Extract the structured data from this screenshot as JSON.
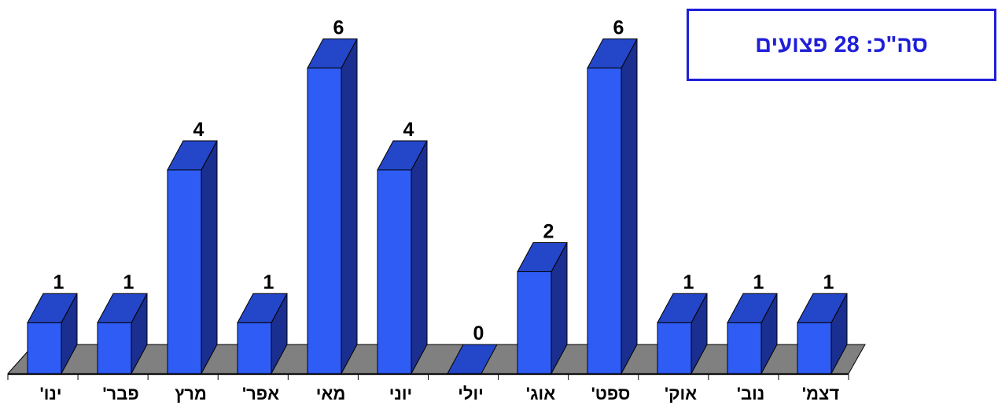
{
  "chart_data": {
    "type": "bar",
    "style": "3d-column",
    "categories": [
      "ינו'",
      "פבר'",
      "מרץ",
      "אפר'",
      "מאי",
      "יוני",
      "יולי",
      "אוג'",
      "ספט'",
      "אוק'",
      "נוב'",
      "דצמ'"
    ],
    "values": [
      1,
      1,
      4,
      1,
      6,
      4,
      0,
      2,
      6,
      1,
      1,
      1
    ],
    "title": "",
    "xlabel": "",
    "ylabel": "",
    "ylim": [
      0,
      6
    ],
    "grid": false,
    "legend": "none",
    "data_labels": true
  },
  "annotation": {
    "total_label": "סה\"כ: 28 פצועים"
  },
  "colors": {
    "bar_front": "#2e5cf5",
    "bar_side": "#1a2f8f",
    "bar_top": "#2446c8",
    "floor": "#808080",
    "annotation": "#1f1fd9"
  }
}
